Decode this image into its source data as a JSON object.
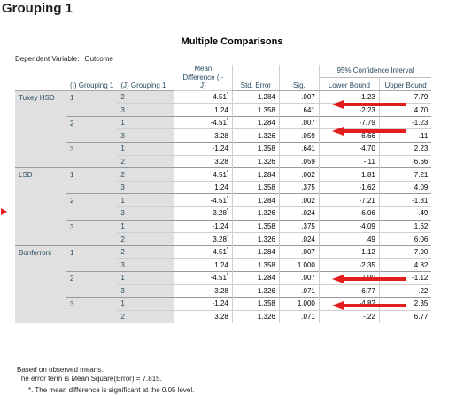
{
  "heading": "Grouping 1",
  "table_title": "Multiple Comparisons",
  "dependent_variable": {
    "label": "Dependent Variable:",
    "value": "Outcome"
  },
  "columns": {
    "group_i": "(I) Grouping 1",
    "group_j": "(J) Grouping 1",
    "mean_diff_line1": "Mean",
    "mean_diff_line2": "Difference (I-",
    "mean_diff_line3": "J)",
    "std_error": "Std. Error",
    "sig": "Sig.",
    "ci": "95% Confidence Interval",
    "lower": "Lower Bound",
    "upper": "Upper Bound"
  },
  "methods": [
    {
      "name": "Tukey HSD",
      "groups": [
        {
          "i": "1",
          "rows": [
            {
              "j": "2",
              "md": "4.51",
              "star": true,
              "se": "1.284",
              "sig": ".007",
              "lb": "1.23",
              "ub": "7.79"
            },
            {
              "j": "3",
              "md": "1.24",
              "star": false,
              "se": "1.358",
              "sig": ".641",
              "lb": "-2.23",
              "ub": "4.70"
            }
          ]
        },
        {
          "i": "2",
          "rows": [
            {
              "j": "1",
              "md": "-4.51",
              "star": true,
              "se": "1.284",
              "sig": ".007",
              "lb": "-7.79",
              "ub": "-1.23"
            },
            {
              "j": "3",
              "md": "-3.28",
              "star": false,
              "se": "1.326",
              "sig": ".059",
              "lb": "-6.66",
              "ub": ".11"
            }
          ]
        },
        {
          "i": "3",
          "rows": [
            {
              "j": "1",
              "md": "-1.24",
              "star": false,
              "se": "1.358",
              "sig": ".641",
              "lb": "-4.70",
              "ub": "2.23"
            },
            {
              "j": "2",
              "md": "3.28",
              "star": false,
              "se": "1.326",
              "sig": ".059",
              "lb": "-.11",
              "ub": "6.66"
            }
          ]
        }
      ]
    },
    {
      "name": "LSD",
      "groups": [
        {
          "i": "1",
          "rows": [
            {
              "j": "2",
              "md": "4.51",
              "star": true,
              "se": "1.284",
              "sig": ".002",
              "lb": "1.81",
              "ub": "7.21"
            },
            {
              "j": "3",
              "md": "1.24",
              "star": false,
              "se": "1.358",
              "sig": ".375",
              "lb": "-1.62",
              "ub": "4.09"
            }
          ]
        },
        {
          "i": "2",
          "rows": [
            {
              "j": "1",
              "md": "-4.51",
              "star": true,
              "se": "1.284",
              "sig": ".002",
              "lb": "-7.21",
              "ub": "-1.81"
            },
            {
              "j": "3",
              "md": "-3.28",
              "star": true,
              "se": "1.326",
              "sig": ".024",
              "lb": "-6.06",
              "ub": "-.49"
            }
          ]
        },
        {
          "i": "3",
          "rows": [
            {
              "j": "1",
              "md": "-1.24",
              "star": false,
              "se": "1.358",
              "sig": ".375",
              "lb": "-4.09",
              "ub": "1.62"
            },
            {
              "j": "2",
              "md": "3.28",
              "star": true,
              "se": "1.326",
              "sig": ".024",
              "lb": ".49",
              "ub": "6.06"
            }
          ]
        }
      ]
    },
    {
      "name": "Bonferroni",
      "groups": [
        {
          "i": "1",
          "rows": [
            {
              "j": "2",
              "md": "4.51",
              "star": true,
              "se": "1.284",
              "sig": ".007",
              "lb": "1.12",
              "ub": "7.90"
            },
            {
              "j": "3",
              "md": "1.24",
              "star": false,
              "se": "1.358",
              "sig": "1.000",
              "lb": "-2.35",
              "ub": "4.82"
            }
          ]
        },
        {
          "i": "2",
          "rows": [
            {
              "j": "1",
              "md": "-4.51",
              "star": true,
              "se": "1.284",
              "sig": ".007",
              "lb": "-7.90",
              "ub": "-1.12"
            },
            {
              "j": "3",
              "md": "-3.28",
              "star": false,
              "se": "1.326",
              "sig": ".071",
              "lb": "-6.77",
              "ub": ".22"
            }
          ]
        },
        {
          "i": "3",
          "rows": [
            {
              "j": "1",
              "md": "-1.24",
              "star": false,
              "se": "1.358",
              "sig": "1.000",
              "lb": "-4.82",
              "ub": "2.35"
            },
            {
              "j": "2",
              "md": "3.28",
              "star": false,
              "se": "1.326",
              "sig": ".071",
              "lb": "-.22",
              "ub": "6.77"
            }
          ]
        }
      ]
    }
  ],
  "star_symbol": "*",
  "footnotes": {
    "line1": "Based on observed means.",
    "line2": "The error term is Mean Square(Error) = 7.815.",
    "line3": "*. The mean difference is significant at the 0.05 level."
  },
  "colors": {
    "header_text": "#264a60",
    "label_bg": "#e0e0e0",
    "arrow": "#e11d1d"
  },
  "annotations": {
    "arrow_icon": "left-arrow-icon",
    "side_marker_icon": "right-triangle-icon"
  }
}
